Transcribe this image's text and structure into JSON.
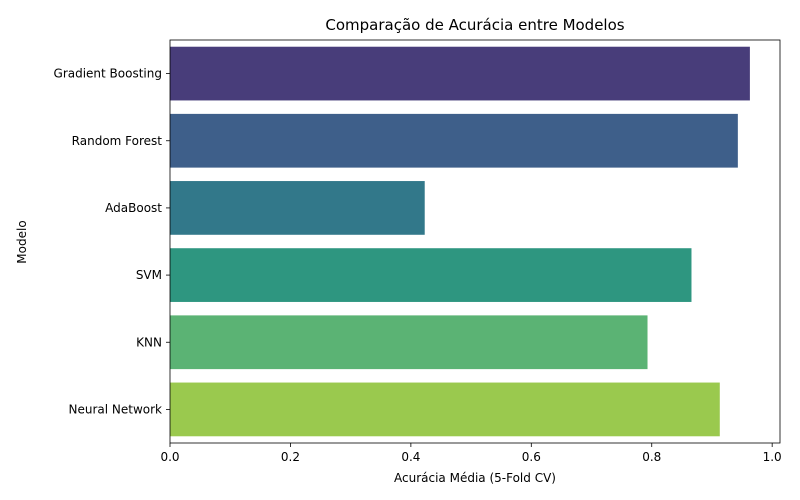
{
  "chart_data": {
    "type": "bar",
    "orientation": "horizontal",
    "title": "Comparação de Acurácia entre Modelos",
    "xlabel": "Acurácia Média (5-Fold CV)",
    "ylabel": "Modelo",
    "categories": [
      "Gradient Boosting",
      "Random Forest",
      "AdaBoost",
      "SVM",
      "KNN",
      "Neural Network"
    ],
    "values": [
      0.963,
      0.943,
      0.423,
      0.866,
      0.793,
      0.913
    ],
    "colors": [
      "#483D7A",
      "#3E5F8A",
      "#32788A",
      "#2E9680",
      "#5BB374",
      "#9AC94E"
    ],
    "xlim": [
      0,
      1.013
    ],
    "xticks": [
      0.0,
      0.2,
      0.4,
      0.6,
      0.8,
      1.0
    ],
    "xtick_labels": [
      "0.0",
      "0.2",
      "0.4",
      "0.6",
      "0.8",
      "1.0"
    ],
    "grid": false,
    "legend": "none"
  }
}
